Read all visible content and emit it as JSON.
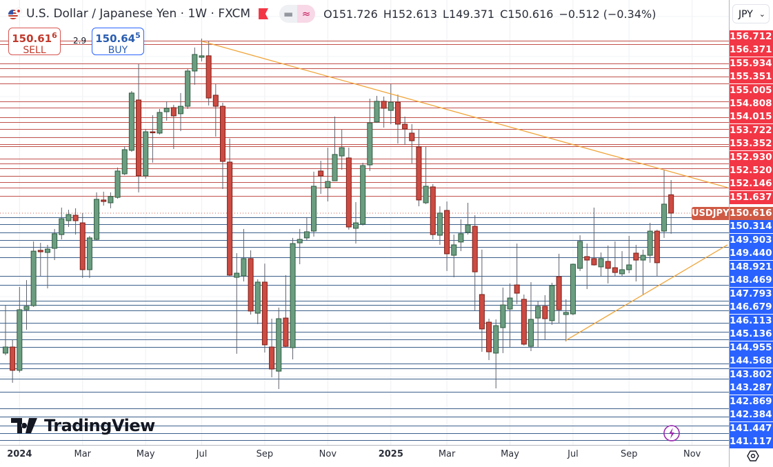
{
  "header": {
    "title": "U.S. Dollar / Japanese Yen · 1W · FXCM",
    "open": "O151.726",
    "high": "H152.613",
    "low": "L149.371",
    "close": "C150.616",
    "change": "−0.512 (−0.34%)",
    "icons": [
      "us-japan-flag-icon",
      "red-flag-icon",
      "minus-icon",
      "wave-icon"
    ]
  },
  "trade": {
    "sell_price": "150.61",
    "sell_price_small": "6",
    "sell_label": "SELL",
    "spread": "2.9",
    "buy_price": "150.64",
    "buy_price_small": "5",
    "buy_label": "BUY"
  },
  "currency_selector": {
    "value": "JPY"
  },
  "logo": "TradingView",
  "colors": {
    "up_body": "#6b9e80",
    "down_body": "#cc4b42",
    "resistance_line": "#c0504a",
    "support_line": "#3b5f8a",
    "trendline": "#f0a53a",
    "red_label": "#f23645",
    "blue_label": "#2962ff",
    "last_price_label": "#cf5a44"
  },
  "chart_data": {
    "type": "candlestick",
    "symbol": "USDJPY",
    "interval": "1W",
    "last_price": "150.616",
    "x_ticks": [
      {
        "label": "2024",
        "bar": 2,
        "year": true
      },
      {
        "label": "Mar",
        "bar": 11
      },
      {
        "label": "May",
        "bar": 20
      },
      {
        "label": "Jul",
        "bar": 28
      },
      {
        "label": "Sep",
        "bar": 37
      },
      {
        "label": "Nov",
        "bar": 46
      },
      {
        "label": "2025",
        "bar": 55,
        "year": true
      },
      {
        "label": "Mar",
        "bar": 63
      },
      {
        "label": "May",
        "bar": 72
      },
      {
        "label": "Jul",
        "bar": 81
      },
      {
        "label": "Sep",
        "bar": 89
      },
      {
        "label": "Nov",
        "bar": 98
      }
    ],
    "resistance_levels": [
      "156.712",
      "156.371",
      "155.934",
      "155.351",
      "155.005",
      "154.808",
      "154.015",
      "153.722",
      "153.352",
      "152.930",
      "152.520",
      "152.146",
      "151.637"
    ],
    "support_levels": [
      "150.314",
      "149.903",
      "149.440",
      "148.921",
      "148.469",
      "147.793",
      "146.679",
      "146.113",
      "145.136",
      "144.955",
      "144.568",
      "143.802",
      "143.287",
      "142.869",
      "142.384",
      "141.447",
      "141.117"
    ],
    "trendlines": [
      {
        "from": {
          "bar": 28,
          "price": 161.0
        },
        "to": {
          "bar": 103.05,
          "price": 152.16
        }
      },
      {
        "from": {
          "bar": 79.9,
          "price": 142.91
        },
        "to": {
          "bar": 103.05,
          "price": 148.7
        }
      }
    ],
    "ohlc": [
      [
        142.16,
        145.03,
        142.03,
        142.53
      ],
      [
        142.53,
        142.99,
        140.37,
        141.12
      ],
      [
        141.12,
        146.16,
        140.99,
        144.78
      ],
      [
        144.78,
        146.57,
        143.57,
        144.99
      ],
      [
        145.03,
        148.91,
        144.95,
        148.32
      ],
      [
        148.37,
        148.82,
        146.82,
        148.28
      ],
      [
        148.24,
        148.7,
        146.07,
        148.45
      ],
      [
        148.49,
        149.66,
        147.78,
        149.37
      ],
      [
        149.32,
        150.95,
        149.03,
        150.28
      ],
      [
        150.16,
        150.82,
        149.78,
        150.53
      ],
      [
        150.49,
        150.91,
        149.32,
        150.16
      ],
      [
        150.03,
        150.62,
        146.7,
        147.2
      ],
      [
        147.2,
        149.24,
        146.7,
        149.12
      ],
      [
        149.03,
        151.87,
        148.95,
        151.45
      ],
      [
        151.41,
        151.91,
        151.07,
        151.32
      ],
      [
        151.24,
        151.87,
        150.91,
        151.62
      ],
      [
        151.57,
        153.37,
        151.49,
        153.16
      ],
      [
        152.99,
        154.66,
        152.91,
        154.45
      ],
      [
        154.41,
        157.99,
        154.32,
        157.87
      ],
      [
        157.45,
        159.62,
        151.87,
        152.87
      ],
      [
        152.87,
        155.7,
        152.7,
        155.53
      ],
      [
        155.53,
        156.53,
        153.66,
        155.49
      ],
      [
        155.45,
        156.91,
        155.37,
        156.7
      ],
      [
        156.74,
        157.37,
        156.2,
        156.95
      ],
      [
        156.99,
        157.16,
        154.49,
        156.49
      ],
      [
        156.62,
        157.87,
        155.57,
        157.07
      ],
      [
        157.07,
        159.32,
        156.91,
        159.2
      ],
      [
        159.2,
        160.62,
        158.37,
        160.2
      ],
      [
        160.03,
        161.16,
        159.78,
        160.12
      ],
      [
        160.12,
        160.99,
        157.12,
        157.57
      ],
      [
        157.74,
        158.41,
        155.24,
        157.07
      ],
      [
        157.07,
        157.28,
        152.07,
        153.74
      ],
      [
        153.7,
        155.12,
        146.78,
        146.87
      ],
      [
        146.74,
        148.2,
        142.12,
        146.99
      ],
      [
        146.82,
        149.66,
        146.49,
        147.87
      ],
      [
        147.87,
        148.37,
        144.49,
        144.7
      ],
      [
        144.57,
        146.62,
        143.91,
        146.45
      ],
      [
        146.45,
        147.57,
        142.2,
        142.66
      ],
      [
        142.53,
        144.24,
        140.7,
        141.2
      ],
      [
        141.07,
        144.91,
        139.99,
        144.24
      ],
      [
        144.28,
        146.87,
        142.49,
        142.57
      ],
      [
        142.49,
        149.12,
        141.78,
        148.78
      ],
      [
        148.82,
        149.66,
        147.53,
        149.03
      ],
      [
        149.12,
        150.37,
        148.99,
        149.49
      ],
      [
        149.53,
        153.12,
        149.2,
        152.24
      ],
      [
        153.16,
        153.78,
        151.78,
        152.87
      ],
      [
        152.16,
        154.57,
        151.32,
        152.53
      ],
      [
        152.57,
        156.45,
        152.57,
        154.16
      ],
      [
        154.07,
        155.66,
        153.24,
        154.57
      ],
      [
        153.95,
        154.57,
        149.62,
        149.78
      ],
      [
        149.7,
        151.28,
        148.78,
        150.03
      ],
      [
        149.95,
        153.66,
        149.87,
        153.49
      ],
      [
        153.53,
        157.53,
        153.16,
        156.07
      ],
      [
        156.12,
        157.7,
        156.07,
        157.37
      ],
      [
        157.37,
        157.66,
        155.78,
        156.95
      ],
      [
        156.82,
        158.41,
        155.99,
        157.32
      ],
      [
        157.32,
        157.78,
        154.82,
        155.99
      ],
      [
        155.99,
        156.45,
        154.74,
        155.7
      ],
      [
        155.45,
        155.99,
        153.62,
        154.99
      ],
      [
        154.62,
        155.66,
        151.03,
        151.41
      ],
      [
        151.24,
        154.62,
        151.16,
        152.24
      ],
      [
        152.2,
        152.37,
        149.03,
        149.32
      ],
      [
        149.28,
        151.03,
        148.7,
        150.62
      ],
      [
        150.78,
        151.32,
        147.12,
        148.16
      ],
      [
        148.07,
        149.32,
        146.74,
        148.7
      ],
      [
        148.87,
        150.24,
        148.32,
        149.37
      ],
      [
        149.45,
        151.24,
        149.32,
        149.91
      ],
      [
        149.82,
        150.49,
        144.74,
        147.07
      ],
      [
        145.7,
        148.41,
        142.24,
        143.62
      ],
      [
        144.03,
        144.24,
        141.74,
        142.24
      ],
      [
        142.16,
        144.2,
        140.03,
        143.82
      ],
      [
        143.7,
        146.12,
        142.16,
        145.07
      ],
      [
        144.82,
        146.37,
        142.53,
        145.49
      ],
      [
        146.28,
        148.78,
        145.12,
        145.78
      ],
      [
        145.41,
        145.7,
        142.62,
        142.7
      ],
      [
        142.57,
        146.45,
        142.28,
        144.2
      ],
      [
        144.28,
        145.28,
        142.53,
        144.99
      ],
      [
        144.99,
        145.66,
        142.99,
        144.24
      ],
      [
        144.12,
        146.41,
        143.87,
        146.24
      ],
      [
        146.78,
        148.16,
        143.95,
        144.78
      ],
      [
        144.49,
        145.41,
        142.87,
        144.62
      ],
      [
        144.53,
        147.57,
        144.45,
        147.53
      ],
      [
        147.28,
        149.28,
        147.12,
        148.91
      ],
      [
        147.99,
        148.78,
        146.03,
        147.78
      ],
      [
        147.87,
        150.95,
        147.45,
        147.49
      ],
      [
        147.37,
        148.24,
        146.82,
        147.87
      ],
      [
        147.7,
        148.66,
        146.37,
        147.28
      ],
      [
        147.32,
        148.91,
        146.78,
        147.03
      ],
      [
        146.95,
        148.32,
        146.82,
        147.2
      ],
      [
        147.2,
        149.24,
        146.99,
        147.49
      ],
      [
        148.2,
        148.7,
        146.49,
        147.78
      ],
      [
        147.78,
        148.41,
        145.7,
        148.07
      ],
      [
        148.07,
        150.03,
        147.62,
        149.53
      ],
      [
        149.53,
        149.62,
        146.78,
        147.62
      ],
      [
        149.53,
        153.2,
        149.12,
        151.16
      ],
      [
        151.726,
        152.613,
        149.371,
        150.616
      ]
    ]
  }
}
